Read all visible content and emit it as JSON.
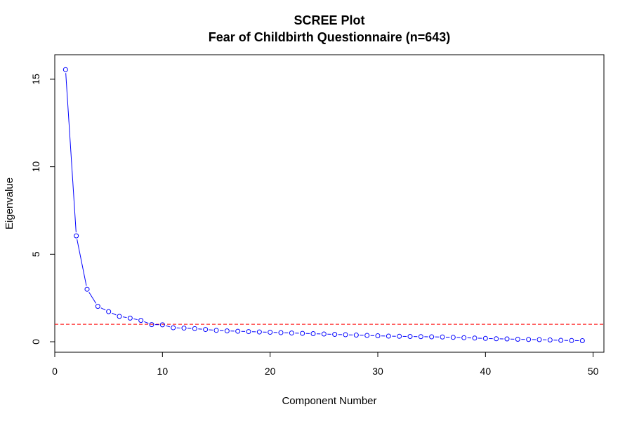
{
  "chart_data": {
    "type": "line",
    "title": "SCREE Plot",
    "subtitle": "Fear of Childbirth Questionnaire (n=643)",
    "xlabel": "Component Number",
    "ylabel": "Eigenvalue",
    "xlim": [
      0,
      51
    ],
    "ylim": [
      -0.6,
      16.4
    ],
    "x_ticks": [
      0,
      10,
      20,
      30,
      40,
      50
    ],
    "y_ticks": [
      0,
      5,
      10,
      15
    ],
    "grid": false,
    "reference_line": {
      "y": 1,
      "color": "#ff0000",
      "style": "dashed"
    },
    "series": [
      {
        "color": "#0000ff",
        "marker": "open-circle",
        "x": [
          1,
          2,
          3,
          4,
          5,
          6,
          7,
          8,
          9,
          10,
          11,
          12,
          13,
          14,
          15,
          16,
          17,
          18,
          19,
          20,
          21,
          22,
          23,
          24,
          25,
          26,
          27,
          28,
          29,
          30,
          31,
          32,
          33,
          34,
          35,
          36,
          37,
          38,
          39,
          40,
          41,
          42,
          43,
          44,
          45,
          46,
          47,
          48,
          49
        ],
        "values": [
          15.55,
          6.05,
          3.0,
          2.02,
          1.72,
          1.45,
          1.35,
          1.22,
          0.98,
          0.97,
          0.8,
          0.78,
          0.75,
          0.7,
          0.65,
          0.62,
          0.6,
          0.58,
          0.56,
          0.54,
          0.52,
          0.5,
          0.48,
          0.46,
          0.44,
          0.42,
          0.4,
          0.38,
          0.36,
          0.34,
          0.32,
          0.31,
          0.3,
          0.29,
          0.28,
          0.27,
          0.25,
          0.23,
          0.21,
          0.19,
          0.17,
          0.16,
          0.14,
          0.13,
          0.12,
          0.1,
          0.08,
          0.07,
          0.06
        ]
      }
    ]
  }
}
